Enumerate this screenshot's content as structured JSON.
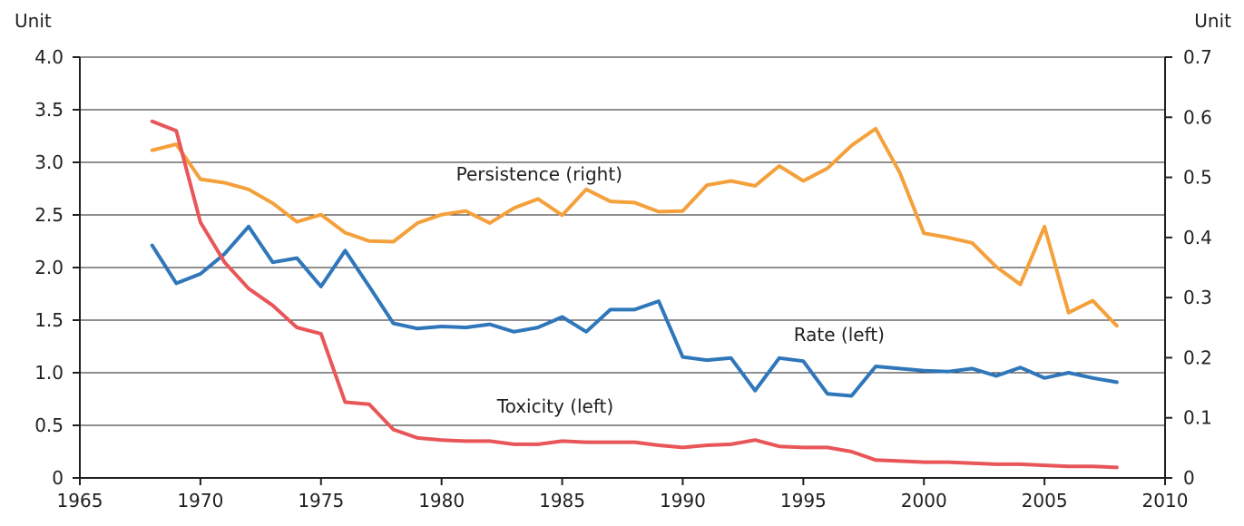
{
  "chart_data": {
    "type": "line",
    "title": "",
    "xlabel": "",
    "ylabel_left": "Unit",
    "ylabel_right": "Unit",
    "xlim": [
      1965,
      2010
    ],
    "x_ticks": [
      1965,
      1970,
      1975,
      1980,
      1985,
      1990,
      1995,
      2000,
      2005,
      2010
    ],
    "ylim_left": [
      0,
      4.0
    ],
    "y_ticks_left": [
      "0",
      "0.5",
      "1.0",
      "1.5",
      "2.0",
      "2.5",
      "3.0",
      "3.5",
      "4.0"
    ],
    "ylim_right": [
      0,
      0.7
    ],
    "y_ticks_right": [
      "0",
      "0.1",
      "0.2",
      "0.3",
      "0.4",
      "0.5",
      "0.6",
      "0.7"
    ],
    "grid": "horizontal",
    "legend": "inline labels",
    "x": [
      1968,
      1969,
      1970,
      1971,
      1972,
      1973,
      1974,
      1975,
      1976,
      1977,
      1978,
      1979,
      1980,
      1981,
      1982,
      1983,
      1984,
      1985,
      1986,
      1987,
      1988,
      1989,
      1990,
      1991,
      1992,
      1993,
      1994,
      1995,
      1996,
      1997,
      1998,
      1999,
      2000,
      2001,
      2002,
      2003,
      2004,
      2005,
      2006,
      2007,
      2008
    ],
    "series": [
      {
        "name": "Persistence (right)",
        "axis": "right",
        "color": "#f4a03b",
        "label_year": 1980.6,
        "label_value": 0.495,
        "values": [
          0.545,
          0.555,
          0.497,
          0.491,
          0.48,
          0.457,
          0.426,
          0.438,
          0.408,
          0.394,
          0.393,
          0.424,
          0.438,
          0.444,
          0.424,
          0.449,
          0.464,
          0.437,
          0.48,
          0.46,
          0.458,
          0.443,
          0.444,
          0.487,
          0.494,
          0.486,
          0.519,
          0.494,
          0.515,
          0.553,
          0.581,
          0.508,
          0.407,
          0.4,
          0.391,
          0.351,
          0.322,
          0.418,
          0.275,
          0.295,
          0.253
        ]
      },
      {
        "name": "Rate (left)",
        "axis": "left",
        "color": "#2f77ba",
        "label_year": 1994.6,
        "label_value": 1.3,
        "values": [
          2.21,
          1.85,
          1.94,
          2.13,
          2.39,
          2.05,
          2.09,
          1.82,
          2.16,
          1.82,
          1.47,
          1.42,
          1.44,
          1.43,
          1.46,
          1.39,
          1.43,
          1.53,
          1.39,
          1.6,
          1.6,
          1.68,
          1.15,
          1.12,
          1.14,
          0.83,
          1.14,
          1.11,
          0.8,
          0.78,
          1.06,
          1.04,
          1.02,
          1.01,
          1.04,
          0.97,
          1.05,
          0.95,
          1.0,
          0.95,
          0.91
        ]
      },
      {
        "name": "Toxicity (left)",
        "axis": "left",
        "color": "#e8565a",
        "label_year": 1982.3,
        "label_value": 0.62,
        "values": [
          3.39,
          3.3,
          2.43,
          2.05,
          1.8,
          1.64,
          1.43,
          1.37,
          0.72,
          0.7,
          0.46,
          0.38,
          0.36,
          0.35,
          0.35,
          0.32,
          0.32,
          0.35,
          0.34,
          0.34,
          0.34,
          0.31,
          0.29,
          0.31,
          0.32,
          0.36,
          0.3,
          0.29,
          0.29,
          0.25,
          0.17,
          0.16,
          0.15,
          0.15,
          0.14,
          0.13,
          0.13,
          0.12,
          0.11,
          0.11,
          0.1
        ]
      }
    ]
  }
}
